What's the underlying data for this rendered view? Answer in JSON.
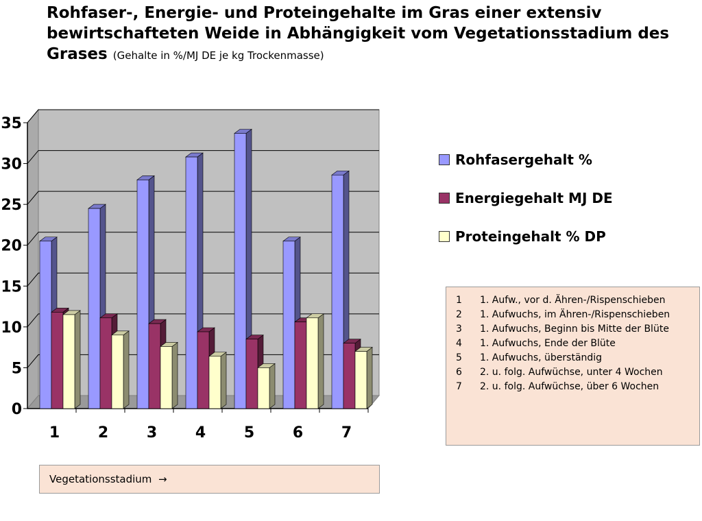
{
  "title_main": "Rohfaser-, Energie- und Proteingehalte im Gras einer extensiv bewirtschafteten Weide in Abhängigkeit vom Vegetationsstadium des Grases",
  "title_sub": "(Gehalte in %/MJ DE je kg Trockenmasse)",
  "stage_key": [
    {
      "num": "1",
      "text": "1. Aufw., vor d. Ähren-/Rispenschieben"
    },
    {
      "num": "2",
      "text": "1. Aufwuchs, im Ähren-/Rispenschieben"
    },
    {
      "num": "3",
      "text": "1. Aufwuchs, Beginn bis Mitte der Blüte"
    },
    {
      "num": "4",
      "text": "1. Aufwuchs, Ende der Blüte"
    },
    {
      "num": "5",
      "text": "1. Aufwuchs, überständig"
    },
    {
      "num": "6",
      "text": "2. u. folg. Aufwüchse, unter 4 Wochen"
    },
    {
      "num": "7",
      "text": "2. u. folg. Aufwüchse, über 6 Wochen"
    }
  ],
  "xlabel": "Vegetationsstadium",
  "xlabel_arrow": "→",
  "chart_data": {
    "type": "bar",
    "title": "Rohfaser-, Energie- und Proteingehalte im Gras einer extensiv bewirtschafteten Weide in Abhängigkeit vom Vegetationsstadium des Grases",
    "subtitle": "(Gehalte in %/MJ DE je kg Trockenmasse)",
    "categories": [
      "1",
      "2",
      "3",
      "4",
      "5",
      "6",
      "7"
    ],
    "series": [
      {
        "name": "Rohfasergehalt %",
        "values": [
          20.5,
          24.5,
          28,
          30.8,
          33.7,
          20.5,
          28.6
        ],
        "color": "#9999ff"
      },
      {
        "name": "Energiegehalt MJ DE",
        "values": [
          11.8,
          11.1,
          10.4,
          9.4,
          8.5,
          10.6,
          8.0
        ],
        "color": "#993366"
      },
      {
        "name": "Proteingehalt % DP",
        "values": [
          11.5,
          9.0,
          7.6,
          6.4,
          5.0,
          11.1,
          7.0
        ],
        "color": "#ffffcc"
      }
    ],
    "xlabel": "Vegetationsstadium",
    "ylabel": "",
    "ylim": [
      0,
      35
    ],
    "yticks": [
      0,
      5,
      10,
      15,
      20,
      25,
      30,
      35
    ],
    "grid": true,
    "legend_position": "right",
    "style": "3d-clustered-column"
  }
}
